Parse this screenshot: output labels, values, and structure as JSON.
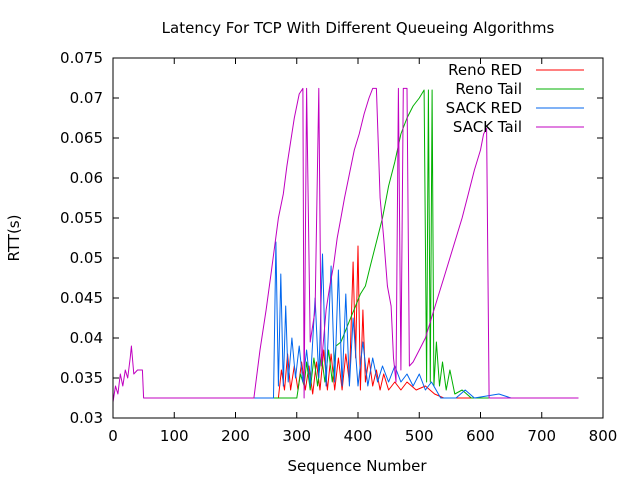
{
  "chart_data": {
    "type": "line",
    "title": "Latency For TCP With Different Queueing Algorithms",
    "xlabel": "Sequence Number",
    "ylabel": "RTT(s)",
    "xlim": [
      0,
      800
    ],
    "ylim": [
      0.03,
      0.075
    ],
    "xticks": [
      "0",
      "100",
      "200",
      "300",
      "400",
      "500",
      "600",
      "700",
      "800"
    ],
    "yticks": [
      "0.03",
      "0.035",
      "0.04",
      "0.045",
      "0.05",
      "0.055",
      "0.06",
      "0.065",
      "0.07",
      "0.075"
    ],
    "grid": false,
    "legend_position": "top-right",
    "series": [
      {
        "name": "Reno RED",
        "color": "#ff0000",
        "points": [
          [
            230,
            0.0325
          ],
          [
            270,
            0.0325
          ],
          [
            275,
            0.036
          ],
          [
            280,
            0.0335
          ],
          [
            285,
            0.038
          ],
          [
            290,
            0.0335
          ],
          [
            296,
            0.0365
          ],
          [
            302,
            0.0335
          ],
          [
            308,
            0.037
          ],
          [
            314,
            0.0335
          ],
          [
            320,
            0.0365
          ],
          [
            326,
            0.033
          ],
          [
            332,
            0.037
          ],
          [
            338,
            0.0335
          ],
          [
            344,
            0.0385
          ],
          [
            350,
            0.0335
          ],
          [
            356,
            0.038
          ],
          [
            362,
            0.0335
          ],
          [
            368,
            0.0375
          ],
          [
            374,
            0.0335
          ],
          [
            380,
            0.038
          ],
          [
            386,
            0.0345
          ],
          [
            392,
            0.0495
          ],
          [
            396,
            0.0375
          ],
          [
            400,
            0.0515
          ],
          [
            404,
            0.0335
          ],
          [
            408,
            0.0435
          ],
          [
            412,
            0.0345
          ],
          [
            418,
            0.0375
          ],
          [
            424,
            0.034
          ],
          [
            430,
            0.036
          ],
          [
            436,
            0.0335
          ],
          [
            442,
            0.0355
          ],
          [
            450,
            0.0335
          ],
          [
            460,
            0.0345
          ],
          [
            470,
            0.0335
          ],
          [
            480,
            0.0345
          ],
          [
            495,
            0.0335
          ],
          [
            510,
            0.034
          ],
          [
            525,
            0.033
          ],
          [
            540,
            0.0325
          ],
          [
            660,
            0.0325
          ]
        ]
      },
      {
        "name": "Reno Tail",
        "color": "#00b000",
        "points": [
          [
            250,
            0.0325
          ],
          [
            300,
            0.0325
          ],
          [
            306,
            0.0355
          ],
          [
            312,
            0.034
          ],
          [
            316,
            0.037
          ],
          [
            322,
            0.0335
          ],
          [
            328,
            0.0375
          ],
          [
            334,
            0.034
          ],
          [
            340,
            0.038
          ],
          [
            346,
            0.0345
          ],
          [
            352,
            0.0385
          ],
          [
            358,
            0.0345
          ],
          [
            364,
            0.039
          ],
          [
            372,
            0.0395
          ],
          [
            380,
            0.041
          ],
          [
            388,
            0.0425
          ],
          [
            396,
            0.044
          ],
          [
            404,
            0.0455
          ],
          [
            412,
            0.0465
          ],
          [
            420,
            0.049
          ],
          [
            430,
            0.052
          ],
          [
            440,
            0.055
          ],
          [
            450,
            0.059
          ],
          [
            460,
            0.062
          ],
          [
            470,
            0.0655
          ],
          [
            480,
            0.0675
          ],
          [
            490,
            0.069
          ],
          [
            500,
            0.07
          ],
          [
            508,
            0.071
          ],
          [
            512,
            0.0345
          ],
          [
            515,
            0.071
          ],
          [
            518,
            0.0345
          ],
          [
            521,
            0.071
          ],
          [
            524,
            0.034
          ],
          [
            528,
            0.0395
          ],
          [
            533,
            0.034
          ],
          [
            538,
            0.037
          ],
          [
            544,
            0.0335
          ],
          [
            550,
            0.036
          ],
          [
            558,
            0.033
          ],
          [
            570,
            0.0335
          ],
          [
            585,
            0.0325
          ],
          [
            680,
            0.0325
          ]
        ]
      },
      {
        "name": "SACK RED",
        "color": "#0066ee",
        "points": [
          [
            230,
            0.0325
          ],
          [
            262,
            0.0325
          ],
          [
            266,
            0.052
          ],
          [
            270,
            0.034
          ],
          [
            274,
            0.048
          ],
          [
            278,
            0.034
          ],
          [
            282,
            0.044
          ],
          [
            286,
            0.0345
          ],
          [
            292,
            0.04
          ],
          [
            298,
            0.035
          ],
          [
            304,
            0.039
          ],
          [
            310,
            0.0345
          ],
          [
            316,
            0.0385
          ],
          [
            322,
            0.034
          ],
          [
            330,
            0.045
          ],
          [
            336,
            0.035
          ],
          [
            342,
            0.0505
          ],
          [
            348,
            0.034
          ],
          [
            356,
            0.049
          ],
          [
            362,
            0.0345
          ],
          [
            368,
            0.0485
          ],
          [
            374,
            0.034
          ],
          [
            380,
            0.0455
          ],
          [
            386,
            0.034
          ],
          [
            392,
            0.0425
          ],
          [
            400,
            0.034
          ],
          [
            408,
            0.0395
          ],
          [
            416,
            0.034
          ],
          [
            424,
            0.0375
          ],
          [
            432,
            0.0345
          ],
          [
            440,
            0.0365
          ],
          [
            450,
            0.0345
          ],
          [
            460,
            0.0365
          ],
          [
            470,
            0.0345
          ],
          [
            480,
            0.0355
          ],
          [
            490,
            0.034
          ],
          [
            500,
            0.0355
          ],
          [
            510,
            0.0335
          ],
          [
            520,
            0.0345
          ],
          [
            535,
            0.0325
          ],
          [
            560,
            0.0325
          ],
          [
            575,
            0.0335
          ],
          [
            590,
            0.0325
          ],
          [
            630,
            0.033
          ],
          [
            650,
            0.0325
          ],
          [
            680,
            0.0325
          ]
        ]
      },
      {
        "name": "SACK Tail",
        "color": "#c000c0",
        "points": [
          [
            0,
            0.032
          ],
          [
            4,
            0.034
          ],
          [
            8,
            0.033
          ],
          [
            12,
            0.0355
          ],
          [
            16,
            0.034
          ],
          [
            20,
            0.036
          ],
          [
            24,
            0.035
          ],
          [
            28,
            0.0375
          ],
          [
            30,
            0.039
          ],
          [
            34,
            0.0355
          ],
          [
            40,
            0.036
          ],
          [
            48,
            0.036
          ],
          [
            50,
            0.0325
          ],
          [
            230,
            0.0325
          ],
          [
            240,
            0.0385
          ],
          [
            250,
            0.0435
          ],
          [
            258,
            0.048
          ],
          [
            264,
            0.0515
          ],
          [
            270,
            0.055
          ],
          [
            278,
            0.058
          ],
          [
            284,
            0.0615
          ],
          [
            290,
            0.0645
          ],
          [
            296,
            0.0675
          ],
          [
            304,
            0.0705
          ],
          [
            310,
            0.0712
          ],
          [
            312,
            0.0325
          ],
          [
            316,
            0.0712
          ],
          [
            322,
            0.0395
          ],
          [
            330,
            0.0435
          ],
          [
            336,
            0.0712
          ],
          [
            340,
            0.0365
          ],
          [
            348,
            0.0435
          ],
          [
            354,
            0.0465
          ],
          [
            360,
            0.049
          ],
          [
            366,
            0.0525
          ],
          [
            372,
            0.055
          ],
          [
            378,
            0.0575
          ],
          [
            386,
            0.0605
          ],
          [
            394,
            0.0635
          ],
          [
            402,
            0.0655
          ],
          [
            410,
            0.068
          ],
          [
            418,
            0.07
          ],
          [
            424,
            0.0712
          ],
          [
            430,
            0.0712
          ],
          [
            436,
            0.0575
          ],
          [
            442,
            0.0525
          ],
          [
            448,
            0.0465
          ],
          [
            454,
            0.044
          ],
          [
            458,
            0.0375
          ],
          [
            462,
            0.0345
          ],
          [
            466,
            0.0712
          ],
          [
            470,
            0.036
          ],
          [
            474,
            0.0712
          ],
          [
            480,
            0.0712
          ],
          [
            484,
            0.0365
          ],
          [
            490,
            0.037
          ],
          [
            500,
            0.0385
          ],
          [
            510,
            0.04
          ],
          [
            520,
            0.0425
          ],
          [
            530,
            0.045
          ],
          [
            540,
            0.0475
          ],
          [
            550,
            0.05
          ],
          [
            560,
            0.0525
          ],
          [
            570,
            0.055
          ],
          [
            580,
            0.058
          ],
          [
            590,
            0.061
          ],
          [
            600,
            0.0635
          ],
          [
            605,
            0.0655
          ],
          [
            610,
            0.0662
          ],
          [
            614,
            0.0325
          ],
          [
            760,
            0.0325
          ]
        ]
      }
    ]
  }
}
